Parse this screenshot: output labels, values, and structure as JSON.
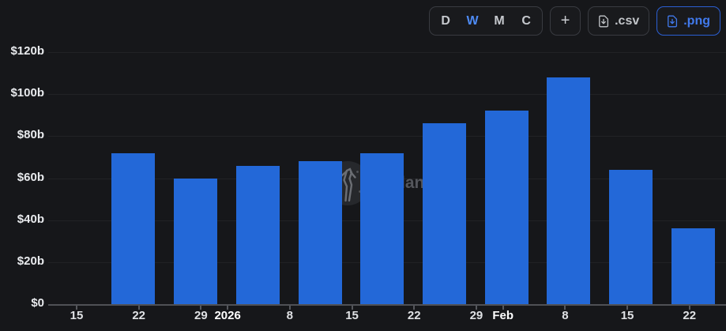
{
  "toolbar": {
    "intervals": [
      {
        "label": "D",
        "active": false
      },
      {
        "label": "W",
        "active": true
      },
      {
        "label": "M",
        "active": false
      },
      {
        "label": "C",
        "active": false
      }
    ],
    "add_label": "+",
    "csv_label": ".csv",
    "png_label": ".png",
    "icons": {
      "csv_button": "file-download-icon",
      "png_button": "file-download-icon"
    }
  },
  "watermark": {
    "visible_text": "lan",
    "icon": "statue-in-circle-logo"
  },
  "colors": {
    "background": "#16171a",
    "bar": "#2368d8",
    "active_interval_blue": "#4e8bf5",
    "png_button_blue": "#417aed",
    "png_button_border": "#2b5fd3",
    "button_border": "#393b41",
    "axis_line": "#4f5156",
    "axis_label_text": "#e8eaed",
    "gridline": "rgba(255,255,255,0.05)"
  },
  "chart_data": {
    "type": "bar",
    "title": "",
    "xlabel": "",
    "ylabel": "",
    "interval_selected": "W",
    "legend": "none",
    "grid": "horizontal-only",
    "values_unit": "billions USD",
    "y_axis": {
      "min": 0,
      "max": 120,
      "unit_prefix": "$",
      "unit_suffix": "b",
      "ticks": [
        {
          "label": "$0",
          "value": 0
        },
        {
          "label": "$20b",
          "value": 20
        },
        {
          "label": "$40b",
          "value": 40
        },
        {
          "label": "$60b",
          "value": 60
        },
        {
          "label": "$80b",
          "value": 80
        },
        {
          "label": "$100b",
          "value": 100
        },
        {
          "label": "$120b",
          "value": 120
        }
      ]
    },
    "x_axis": {
      "ticks": [
        {
          "label": "15",
          "day": 0,
          "bold": false
        },
        {
          "label": "22",
          "day": 7,
          "bold": false
        },
        {
          "label": "29",
          "day": 14,
          "bold": false
        },
        {
          "label": "2026",
          "day": 17,
          "bold": true
        },
        {
          "label": "8",
          "day": 24,
          "bold": false
        },
        {
          "label": "15",
          "day": 31,
          "bold": false
        },
        {
          "label": "22",
          "day": 38,
          "bold": false
        },
        {
          "label": "29",
          "day": 45,
          "bold": false
        },
        {
          "label": "Feb",
          "day": 48,
          "bold": true
        },
        {
          "label": "8",
          "day": 55,
          "bold": false
        },
        {
          "label": "15",
          "day": 62,
          "bold": false
        },
        {
          "label": "22",
          "day": 69,
          "bold": false
        }
      ]
    },
    "bars": [
      {
        "center_day": 6.4,
        "value": 72
      },
      {
        "center_day": 13.4,
        "value": 60
      },
      {
        "center_day": 20.4,
        "value": 66
      },
      {
        "center_day": 27.4,
        "value": 68
      },
      {
        "center_day": 34.4,
        "value": 72
      },
      {
        "center_day": 41.4,
        "value": 86
      },
      {
        "center_day": 48.4,
        "value": 92
      },
      {
        "center_day": 55.4,
        "value": 108
      },
      {
        "center_day": 62.4,
        "value": 64
      },
      {
        "center_day": 69.4,
        "value": 36
      }
    ]
  }
}
